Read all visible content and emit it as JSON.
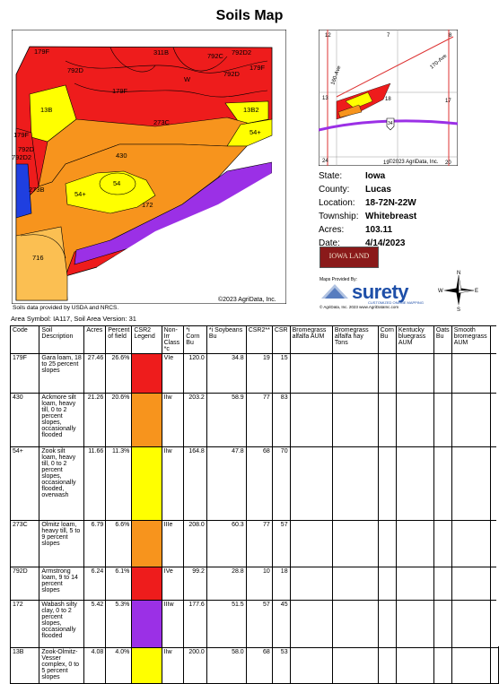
{
  "page_title": "Soils Map",
  "main_map": {
    "copyright": "©2023 AgriData, Inc.",
    "labels": [
      "179F",
      "792D",
      "179F",
      "311B",
      "792C",
      "W",
      "792D",
      "179F",
      "792D2",
      "13B",
      "273C",
      "179F",
      "13B2",
      "54+",
      "792D",
      "792D2",
      "430",
      "273B",
      "54",
      "54+",
      "172",
      "716"
    ],
    "colors": {
      "red": "#ee1c1c",
      "orange": "#f7941d",
      "yellow": "#ffff00",
      "purple": "#9b30e6",
      "blue": "#1f3fe0",
      "lightorange": "#fbbf52"
    }
  },
  "location_map": {
    "labels": {
      "sec12": "12",
      "sec7": "7",
      "sec8": "8",
      "sec13": "13",
      "sec18": "18",
      "sec17": "17",
      "sec24": "24",
      "sec19": "19",
      "sec20": "20",
      "road1": "160-Ave",
      "road2": "170-Ave",
      "hwy": "34"
    },
    "copyright": "©2023 AgriData, Inc."
  },
  "info": {
    "rows": [
      {
        "label": "State:",
        "value": "Iowa"
      },
      {
        "label": "County:",
        "value": "Lucas"
      },
      {
        "label": "Location:",
        "value": "18-72N-22W"
      },
      {
        "label": "Township:",
        "value": "Whitebreast"
      },
      {
        "label": "Acres:",
        "value": "103.11"
      },
      {
        "label": "Date:",
        "value": "4/14/2023"
      }
    ]
  },
  "logos": {
    "iowa_land": "IOWA LAND",
    "maps_provided_by": "Maps Provided By:",
    "surety": "surety",
    "surety_tagline": "CUSTOMIZED ONLINE MAPPING",
    "surety_footer": "© AgriData, Inc. 2023          www.AgriDataInc.com",
    "compass": {
      "n": "N",
      "s": "S",
      "e": "E",
      "w": "W"
    }
  },
  "source_note": "Soils data provided by USDA and NRCS.",
  "area_symbol": "Area Symbol: IA117, Soil Area Version: 31",
  "table": {
    "headers": [
      "Code",
      "Soil Description",
      "Acres",
      "Percent of field",
      "CSR2 Legend",
      "Non-Irr Class *c",
      "*i Corn Bu",
      "*i Soybeans Bu",
      "CSR2**",
      "CSR",
      "Bromegrass alfalfa AUM",
      "Bromegrass alfalfa hay Tons",
      "Corn Bu",
      "Kentucky bluegrass AUM",
      "Oats Bu",
      "Smooth bromegrass AUM",
      ""
    ],
    "rows": [
      {
        "code": "179F",
        "desc": "Gara loam, 18 to 25 percent slopes",
        "acres": "27.46",
        "pct": "26.6%",
        "color": "#ee1c1c",
        "cls": "VIe",
        "corn": "120.0",
        "soy": "34.8",
        "csr2": "19",
        "csr": "15"
      },
      {
        "code": "430",
        "desc": "Ackmore silt loam, heavy till, 0 to 2 percent slopes, occasionally flooded",
        "acres": "21.26",
        "pct": "20.6%",
        "color": "#f7941d",
        "cls": "IIw",
        "corn": "203.2",
        "soy": "58.9",
        "csr2": "77",
        "csr": "83"
      },
      {
        "code": "54+",
        "desc": "Zook silt loam, heavy till, 0 to 2 percent slopes, occasionally flooded, overwash",
        "acres": "11.66",
        "pct": "11.3%",
        "color": "#ffff00",
        "cls": "IIw",
        "corn": "164.8",
        "soy": "47.8",
        "csr2": "68",
        "csr": "70"
      },
      {
        "code": "273C",
        "desc": "Olmitz loam, heavy till, 5 to 9 percent slopes",
        "acres": "6.79",
        "pct": "6.6%",
        "color": "#f7941d",
        "cls": "IIIe",
        "corn": "208.0",
        "soy": "60.3",
        "csr2": "77",
        "csr": "57"
      },
      {
        "code": "792D",
        "desc": "Armstrong loam, 9 to 14 percent slopes",
        "acres": "6.24",
        "pct": "6.1%",
        "color": "#ee1c1c",
        "cls": "IVe",
        "corn": "99.2",
        "soy": "28.8",
        "csr2": "10",
        "csr": "18"
      },
      {
        "code": "172",
        "desc": "Wabash silty clay, 0 to 2 percent slopes, occasionally flooded",
        "acres": "5.42",
        "pct": "5.3%",
        "color": "#9b30e6",
        "cls": "IIIw",
        "corn": "177.6",
        "soy": "51.5",
        "csr2": "57",
        "csr": "45"
      },
      {
        "code": "13B",
        "desc": "Zook-Olmitz-Vesser complex, 0 to 5 percent slopes",
        "acres": "4.08",
        "pct": "4.0%",
        "color": "#ffff00",
        "cls": "IIw",
        "corn": "200.0",
        "soy": "58.0",
        "csr2": "68",
        "csr": "53"
      }
    ]
  }
}
